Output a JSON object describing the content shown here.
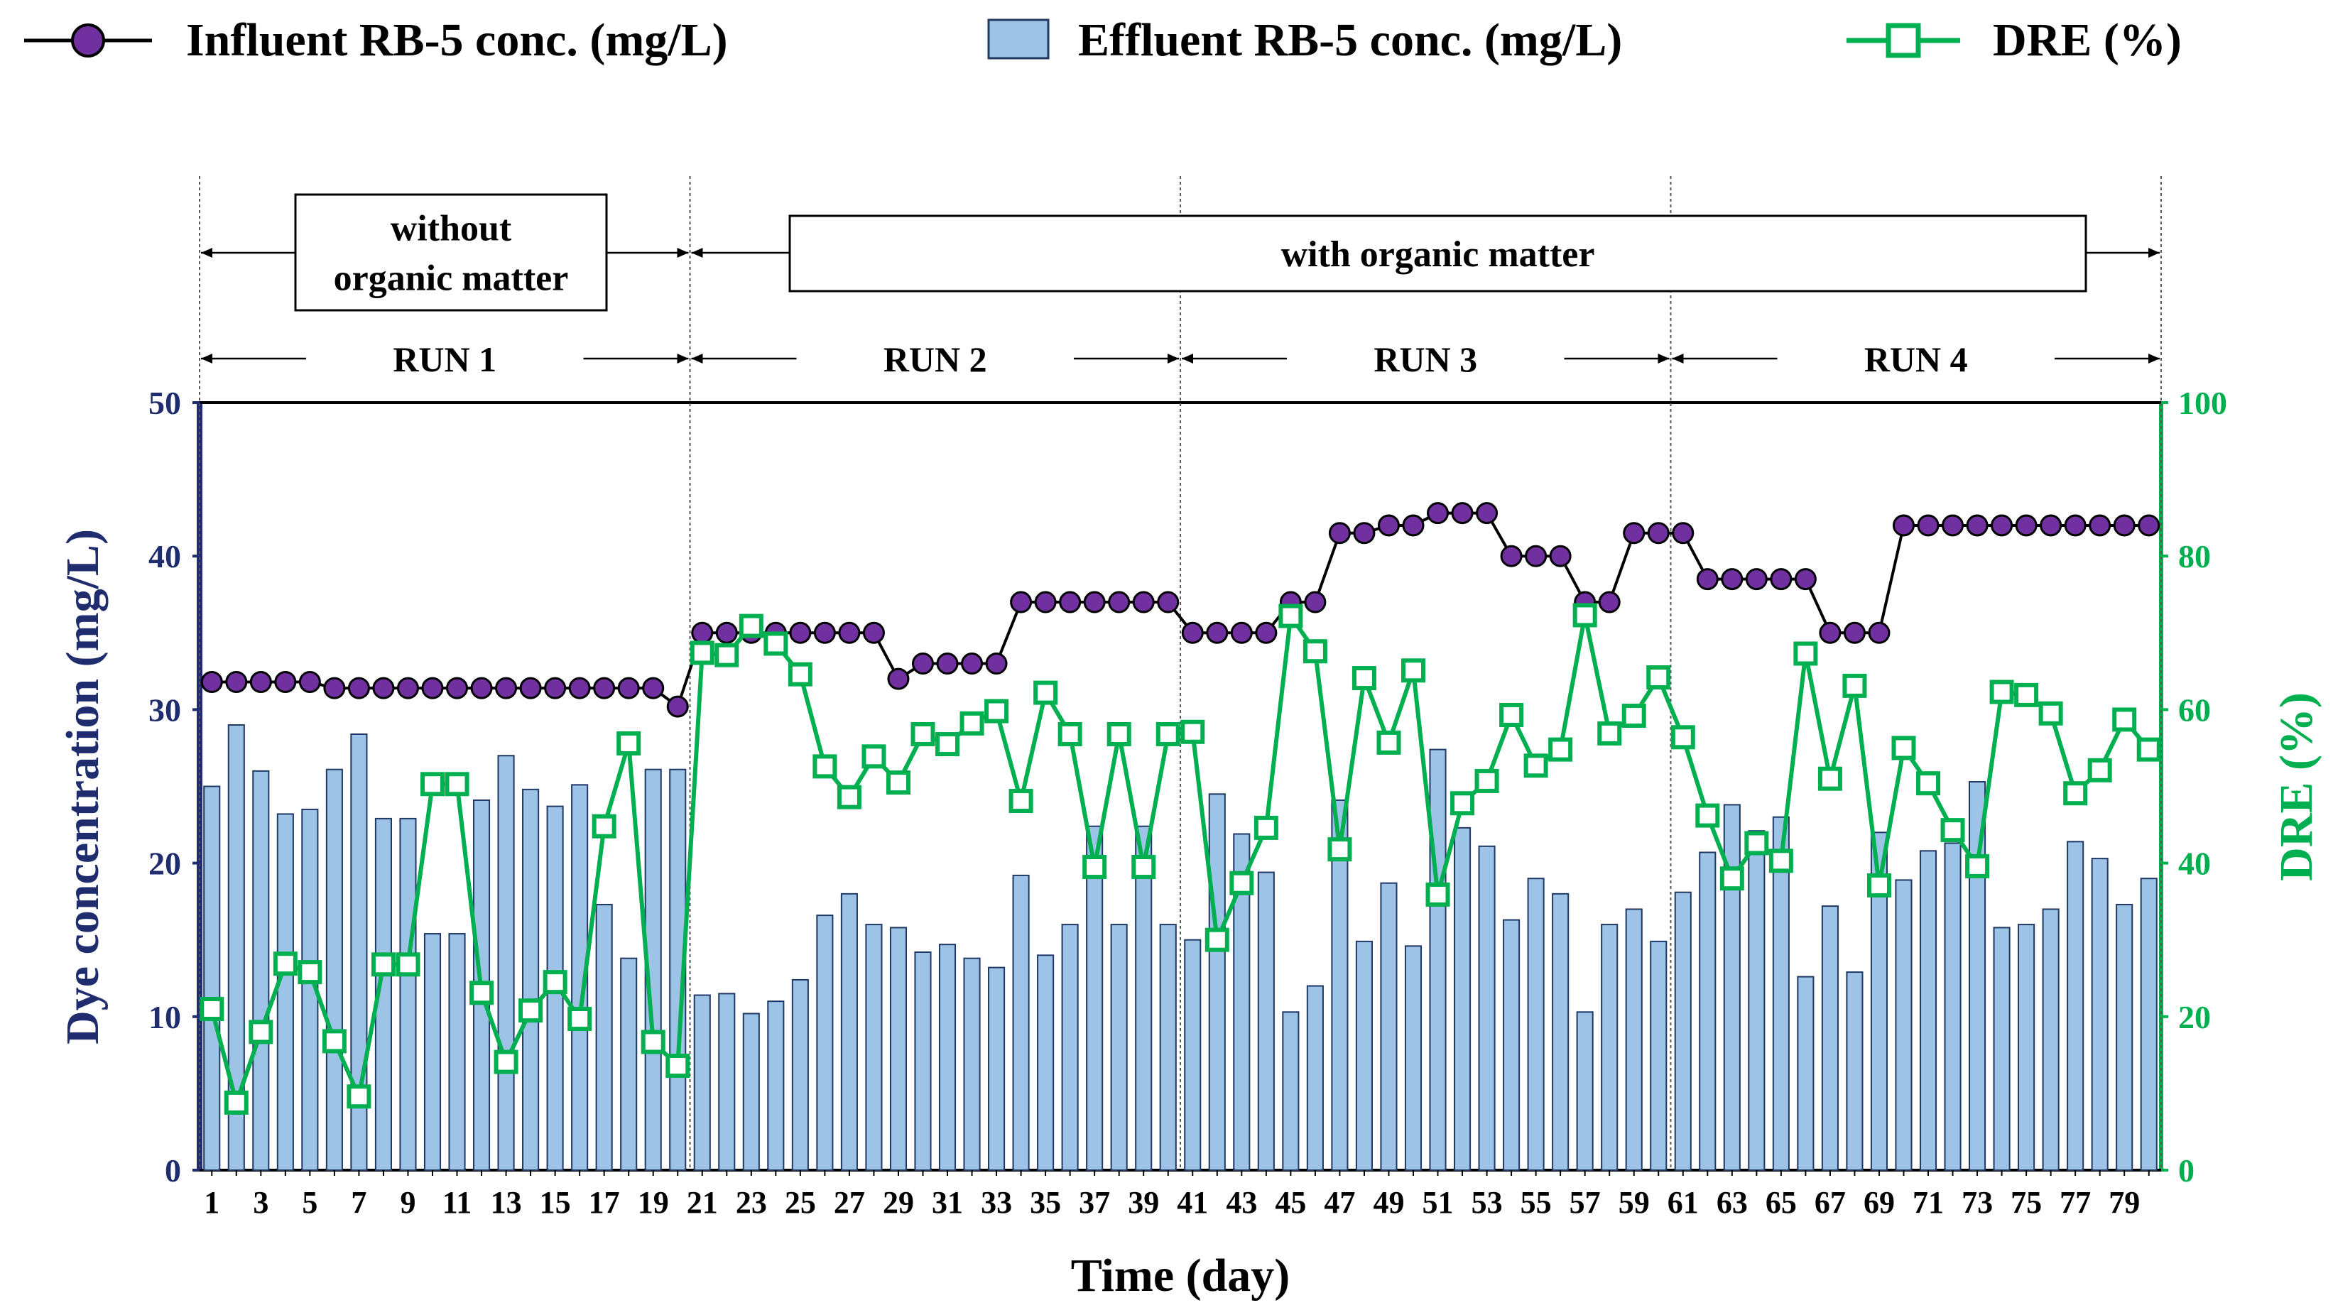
{
  "legend": {
    "influent": "Influent RB-5 conc. (mg/L)",
    "effluent": "Effluent RB-5 conc. (mg/L)",
    "dre": "DRE (%)"
  },
  "phases": [
    {
      "label": "without organic matter",
      "label_lines": [
        "without",
        "organic matter"
      ],
      "day_start": 0.5,
      "day_end": 20.5
    },
    {
      "label": "with organic matter",
      "label_lines": [
        "with organic matter"
      ],
      "day_start": 20.5,
      "day_end": 80.5
    }
  ],
  "runs": [
    {
      "label": "RUN 1",
      "day_start": 0.5,
      "day_end": 20.5
    },
    {
      "label": "RUN 2",
      "day_start": 20.5,
      "day_end": 40.5
    },
    {
      "label": "RUN 3",
      "day_start": 40.5,
      "day_end": 60.5
    },
    {
      "label": "RUN 4",
      "day_start": 60.5,
      "day_end": 80.5
    }
  ],
  "colors": {
    "influent_marker": "#7030a0",
    "influent_line": "#000000",
    "effluent_bar": "#9dc3e6",
    "effluent_bar_edge": "#1f3864",
    "dre": "#00b050",
    "left_axis": "#1f2d6e",
    "right_axis": "#00b050"
  },
  "chart_data": {
    "type": "bar+line",
    "title": "",
    "xlabel": "Time (day)",
    "ylabel": "Dye concentration (mg/L)",
    "y2label": "DRE (%)",
    "ylim": [
      0,
      50
    ],
    "y2lim": [
      0,
      100
    ],
    "yticks": [
      0,
      10,
      20,
      30,
      40,
      50
    ],
    "y2ticks": [
      0,
      20,
      40,
      60,
      80,
      100
    ],
    "xlim": [
      0.5,
      80.5
    ],
    "xticks": [
      1,
      3,
      5,
      7,
      9,
      11,
      13,
      15,
      17,
      19,
      21,
      23,
      25,
      27,
      29,
      31,
      33,
      35,
      37,
      39,
      41,
      43,
      45,
      47,
      49,
      51,
      53,
      55,
      57,
      59,
      61,
      63,
      65,
      67,
      69,
      71,
      73,
      75,
      77,
      79
    ],
    "x": [
      1,
      2,
      3,
      4,
      5,
      6,
      7,
      8,
      9,
      10,
      11,
      12,
      13,
      14,
      15,
      16,
      17,
      18,
      19,
      20,
      21,
      22,
      23,
      24,
      25,
      26,
      27,
      28,
      29,
      30,
      31,
      32,
      33,
      34,
      35,
      36,
      37,
      38,
      39,
      40,
      41,
      42,
      43,
      44,
      45,
      46,
      47,
      48,
      49,
      50,
      51,
      52,
      53,
      54,
      55,
      56,
      57,
      58,
      59,
      60,
      61,
      62,
      63,
      64,
      65,
      66,
      67,
      68,
      69,
      70,
      71,
      72,
      73,
      74,
      75,
      76,
      77,
      78,
      79,
      80
    ],
    "series": [
      {
        "name": "Influent RB-5 conc. (mg/L)",
        "kind": "line-marker",
        "axis": "left",
        "values": [
          31.8,
          31.8,
          31.8,
          31.8,
          31.8,
          31.4,
          31.4,
          31.4,
          31.4,
          31.4,
          31.4,
          31.4,
          31.4,
          31.4,
          31.4,
          31.4,
          31.4,
          31.4,
          31.4,
          30.2,
          35,
          35,
          35,
          35,
          35,
          35,
          35,
          35,
          32,
          33,
          33,
          33,
          33,
          37,
          37,
          37,
          37,
          37,
          37,
          37,
          35,
          35,
          35,
          35,
          37,
          37,
          41.5,
          41.5,
          42,
          42,
          42.8,
          42.8,
          42.8,
          40,
          40,
          40,
          37,
          37,
          41.5,
          41.5,
          41.5,
          38.5,
          38.5,
          38.5,
          38.5,
          38.5,
          35,
          35,
          35,
          42,
          42,
          42,
          42,
          42,
          42,
          42,
          42,
          42,
          42,
          42
        ]
      },
      {
        "name": "Effluent RB-5 conc. (mg/L)",
        "kind": "bar",
        "axis": "left",
        "values": [
          25,
          29,
          26,
          23.2,
          23.5,
          26.1,
          28.4,
          22.9,
          22.9,
          15.4,
          15.4,
          24.1,
          27,
          24.8,
          23.7,
          25.1,
          17.3,
          13.8,
          26.1,
          26.1,
          11.4,
          11.5,
          10.2,
          11,
          12.4,
          16.6,
          18,
          16,
          15.8,
          14.2,
          14.7,
          13.8,
          13.2,
          19.2,
          14,
          16,
          22.4,
          16,
          22.4,
          16,
          15,
          24.5,
          21.9,
          19.4,
          10.3,
          12,
          24.1,
          14.9,
          18.7,
          14.6,
          27.4,
          22.3,
          21.1,
          16.3,
          19,
          18,
          10.3,
          16,
          17,
          14.9,
          18.1,
          20.7,
          23.8,
          22.1,
          23,
          12.6,
          17.2,
          12.9,
          22,
          18.9,
          20.8,
          21.3,
          25.3,
          15.8,
          16,
          17,
          21.4,
          20.3,
          17.3,
          19
        ]
      },
      {
        "name": "DRE (%)",
        "kind": "line-marker",
        "axis": "right",
        "values": [
          21,
          8.8,
          18,
          26.9,
          25.8,
          16.8,
          9.6,
          26.8,
          26.8,
          50.3,
          50.3,
          23.1,
          14.1,
          20.8,
          24.5,
          19.7,
          44.8,
          55.6,
          16.7,
          13.6,
          67.4,
          67.1,
          70.9,
          68.6,
          64.6,
          52.6,
          48.6,
          53.9,
          50.5,
          56.8,
          55.5,
          58.2,
          59.8,
          48.1,
          62.2,
          56.8,
          39.5,
          56.8,
          39.5,
          56.8,
          57.1,
          30,
          37.4,
          44.6,
          72.2,
          67.6,
          41.8,
          64.1,
          55.7,
          65.1,
          35.9,
          47.8,
          50.7,
          59.3,
          52.7,
          54.8,
          72.3,
          56.9,
          59.2,
          64.2,
          56.4,
          46.2,
          38,
          42.6,
          40.3,
          67.3,
          51,
          63.1,
          37.1,
          55,
          50.4,
          44.3,
          39.6,
          62.3,
          61.9,
          59.5,
          49.1,
          52.1,
          58.7,
          54.8
        ]
      }
    ],
    "legend_position": "top"
  }
}
